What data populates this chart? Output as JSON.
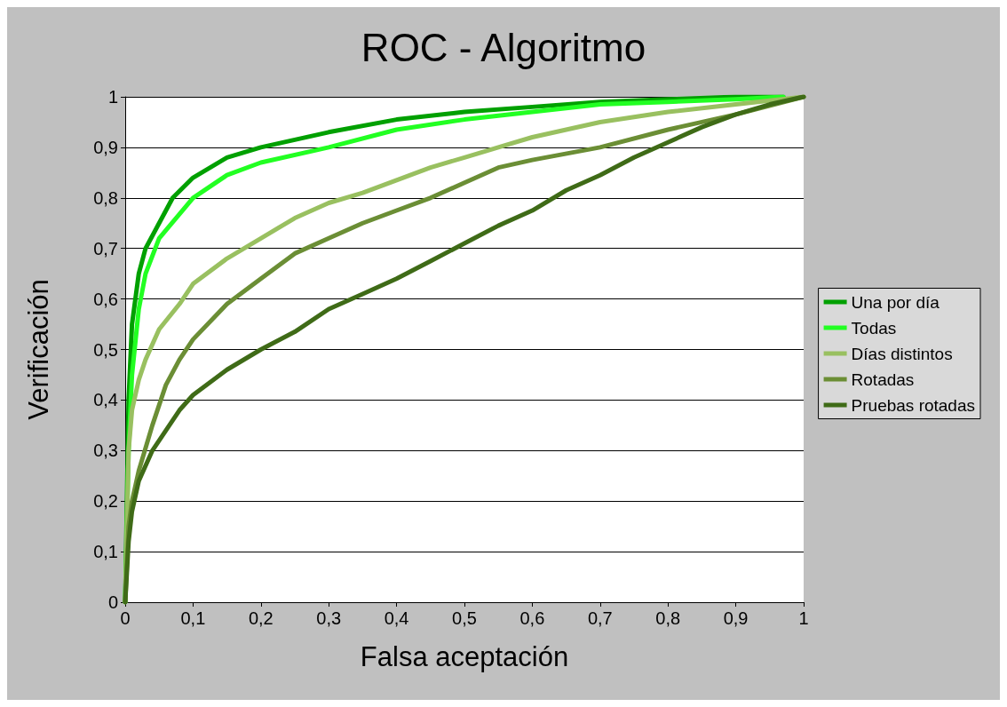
{
  "chart_data": {
    "type": "line",
    "title": "ROC - Algoritmo",
    "xlabel": "Falsa aceptación",
    "ylabel": "Verificación",
    "xlim": [
      0,
      1
    ],
    "ylim": [
      0,
      1
    ],
    "xticks": [
      0,
      {
        "value": 0.1,
        "label": "0,1"
      },
      {
        "value": 0.2,
        "label": "0,2"
      },
      {
        "value": 0.3,
        "label": "0,3"
      },
      {
        "value": 0.4,
        "label": "0,4"
      },
      {
        "value": 0.5,
        "label": "0,5"
      },
      {
        "value": 0.6,
        "label": "0,6"
      },
      {
        "value": 0.7,
        "label": "0,7"
      },
      {
        "value": 0.8,
        "label": "0,8"
      },
      {
        "value": 0.9,
        "label": "0,9"
      },
      1
    ],
    "yticks": [
      0,
      {
        "value": 0.1,
        "label": "0,1"
      },
      {
        "value": 0.2,
        "label": "0,2"
      },
      {
        "value": 0.3,
        "label": "0,3"
      },
      {
        "value": 0.4,
        "label": "0,4"
      },
      {
        "value": 0.5,
        "label": "0,5"
      },
      {
        "value": 0.6,
        "label": "0,6"
      },
      {
        "value": 0.7,
        "label": "0,7"
      },
      {
        "value": 0.8,
        "label": "0,8"
      },
      {
        "value": 0.9,
        "label": "0,9"
      },
      1
    ],
    "grid": "y",
    "legend": "right",
    "marker": "none",
    "line_style": "solid",
    "series": [
      {
        "name": "Una por día",
        "color": "#00a000",
        "x": [
          0,
          0.005,
          0.01,
          0.02,
          0.03,
          0.05,
          0.07,
          0.1,
          0.15,
          0.2,
          0.3,
          0.4,
          0.5,
          0.6,
          0.7,
          0.8,
          0.9,
          0.97
        ],
        "values": [
          0,
          0.4,
          0.55,
          0.65,
          0.7,
          0.75,
          0.8,
          0.84,
          0.88,
          0.9,
          0.93,
          0.955,
          0.97,
          0.98,
          0.99,
          0.995,
          1,
          1
        ]
      },
      {
        "name": "Todas",
        "color": "#22ff22",
        "x": [
          0,
          0.005,
          0.01,
          0.02,
          0.03,
          0.05,
          0.1,
          0.15,
          0.2,
          0.3,
          0.4,
          0.5,
          0.6,
          0.7,
          0.8,
          0.9,
          0.97
        ],
        "values": [
          0,
          0.3,
          0.45,
          0.58,
          0.65,
          0.72,
          0.8,
          0.845,
          0.87,
          0.9,
          0.935,
          0.955,
          0.97,
          0.985,
          0.99,
          0.995,
          1
        ]
      },
      {
        "name": "Días distintos",
        "color": "#99c060",
        "x": [
          0,
          0.005,
          0.01,
          0.02,
          0.03,
          0.05,
          0.08,
          0.1,
          0.15,
          0.2,
          0.25,
          0.3,
          0.35,
          0.4,
          0.45,
          0.5,
          0.55,
          0.6,
          0.7,
          0.8,
          0.9,
          1
        ],
        "values": [
          0,
          0.3,
          0.38,
          0.44,
          0.48,
          0.54,
          0.59,
          0.63,
          0.68,
          0.72,
          0.76,
          0.79,
          0.81,
          0.835,
          0.86,
          0.88,
          0.9,
          0.92,
          0.95,
          0.97,
          0.985,
          1
        ]
      },
      {
        "name": "Rotadas",
        "color": "#6b8e35",
        "x": [
          0,
          0.005,
          0.01,
          0.02,
          0.04,
          0.06,
          0.08,
          0.1,
          0.15,
          0.2,
          0.25,
          0.3,
          0.35,
          0.4,
          0.45,
          0.5,
          0.55,
          0.6,
          0.7,
          0.8,
          0.9,
          1
        ],
        "values": [
          0,
          0.15,
          0.2,
          0.26,
          0.35,
          0.43,
          0.48,
          0.52,
          0.59,
          0.64,
          0.69,
          0.72,
          0.75,
          0.775,
          0.8,
          0.83,
          0.86,
          0.875,
          0.9,
          0.935,
          0.965,
          1
        ]
      },
      {
        "name": "Pruebas rotadas",
        "color": "#3f6b17",
        "x": [
          0,
          0.005,
          0.01,
          0.02,
          0.04,
          0.06,
          0.08,
          0.1,
          0.15,
          0.2,
          0.25,
          0.3,
          0.35,
          0.4,
          0.45,
          0.5,
          0.55,
          0.6,
          0.65,
          0.7,
          0.75,
          0.8,
          0.85,
          0.9,
          0.95,
          1
        ],
        "values": [
          0,
          0.12,
          0.18,
          0.24,
          0.3,
          0.34,
          0.38,
          0.41,
          0.46,
          0.5,
          0.535,
          0.58,
          0.61,
          0.64,
          0.675,
          0.71,
          0.745,
          0.775,
          0.815,
          0.845,
          0.88,
          0.91,
          0.94,
          0.965,
          0.985,
          1
        ]
      }
    ]
  }
}
